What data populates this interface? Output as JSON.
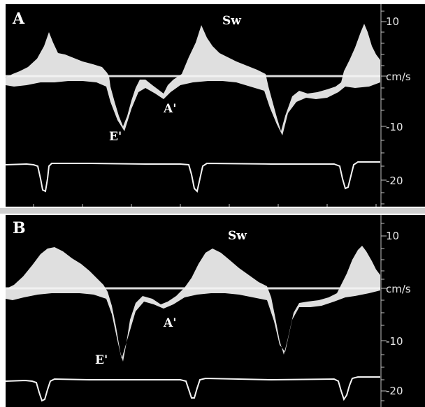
{
  "panels": [
    {
      "id": "A",
      "label": "A",
      "waves": {
        "sw": "Sw",
        "a_prime": "A'",
        "e_prime": "E'"
      },
      "axis_ticks": [
        "10",
        "cm/s",
        "-10",
        "-20"
      ]
    },
    {
      "id": "B",
      "label": "B",
      "waves": {
        "sw": "Sw",
        "a_prime": "A'",
        "e_prime": "E'"
      },
      "axis_ticks": [
        "10",
        "cm/s",
        "-10",
        "-20"
      ]
    }
  ],
  "colors": {
    "background": "#000000",
    "trace": "#ffffff",
    "divider": "#cfcfcf"
  }
}
